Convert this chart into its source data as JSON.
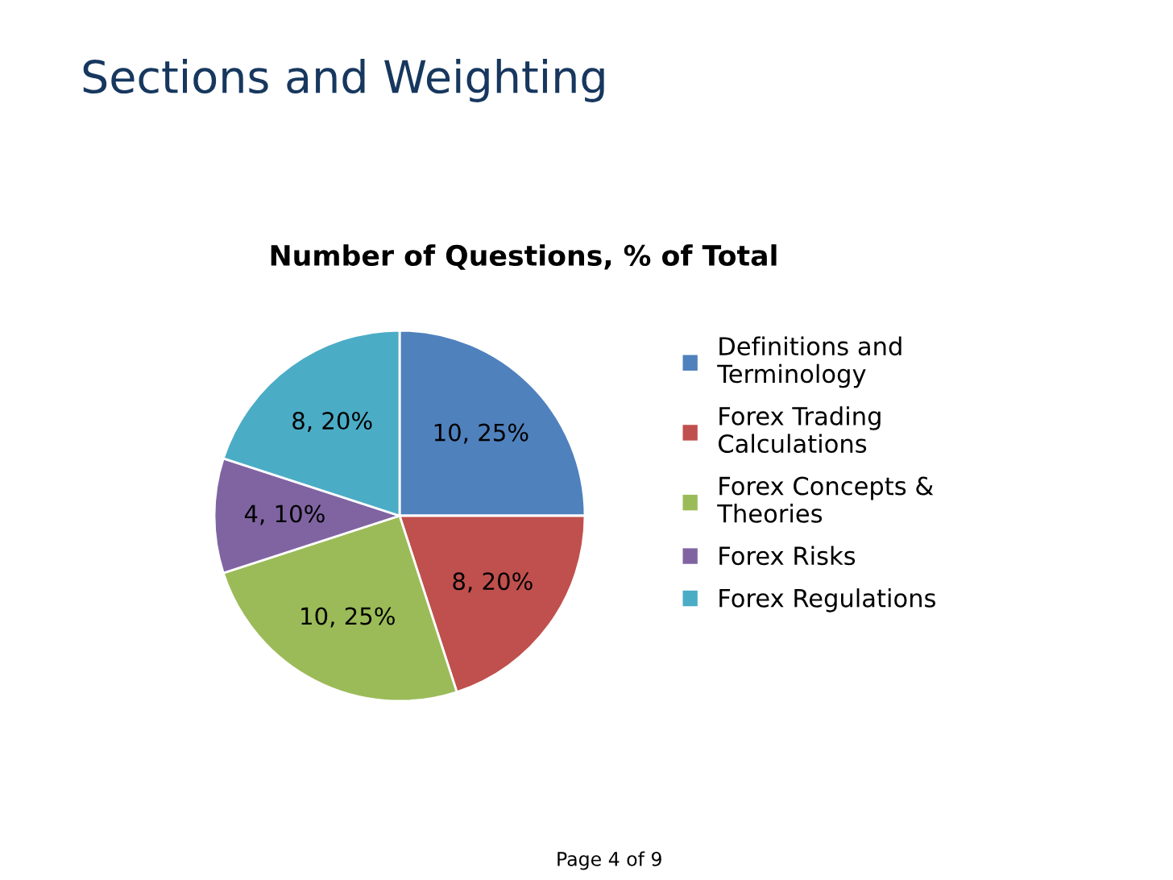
{
  "chart_data": {
    "type": "pie",
    "title": "Sections and Weighting",
    "subtitle": "Number of Questions, % of Total",
    "categories": [
      "Definitions and Terminology",
      "Forex Trading Calculations",
      "Forex Concepts & Theories",
      "Forex Risks",
      "Forex Regulations"
    ],
    "values": [
      10,
      8,
      10,
      4,
      8
    ],
    "value_labels": [
      "10, 25%",
      "8, 20%",
      "10, 25%",
      "4, 10%",
      "8, 20%"
    ],
    "colors": [
      "#4f81bd",
      "#c0504d",
      "#9bbb59",
      "#8064a2",
      "#4bacc6"
    ],
    "legend": "right",
    "annotations": [
      "Page 4 of 9"
    ]
  }
}
